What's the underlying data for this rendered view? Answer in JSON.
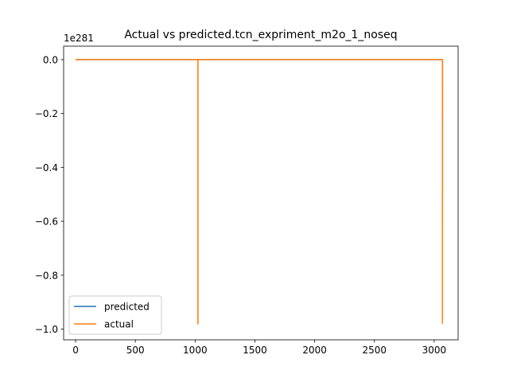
{
  "chart_data": {
    "type": "line",
    "title": "Actual vs predicted.tcn_expriment_m2o_1_noseq",
    "xlabel": "",
    "ylabel": "",
    "y_offset_label": "1e281",
    "xlim": [
      -100,
      3200
    ],
    "ylim": [
      -1.04,
      0.05
    ],
    "x_ticks": [
      0,
      500,
      1000,
      1500,
      2000,
      2500,
      3000
    ],
    "x_tick_labels": [
      "0",
      "500",
      "1000",
      "1500",
      "2000",
      "2500",
      "3000"
    ],
    "y_ticks": [
      0.0,
      -0.2,
      -0.4,
      -0.6,
      -0.8,
      -1.0
    ],
    "y_tick_labels": [
      "0.0",
      "−0.2",
      "−0.4",
      "−0.6",
      "−0.8",
      "−1.0"
    ],
    "grid": false,
    "legend_position": "lower-left",
    "series": [
      {
        "name": "predicted",
        "color": "#1f77b4",
        "x": [
          0,
          3070
        ],
        "y": [
          0,
          0
        ]
      },
      {
        "name": "actual",
        "color": "#ff7f0e",
        "x": [
          0,
          1023,
          1023,
          1024,
          1024,
          3069,
          3069,
          3070
        ],
        "y": [
          0,
          0,
          -0.98,
          -0.98,
          0,
          0,
          -0.98,
          0
        ]
      }
    ]
  }
}
